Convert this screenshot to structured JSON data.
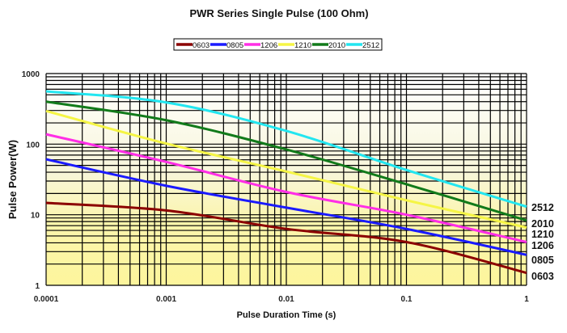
{
  "chart_data": {
    "type": "line",
    "title": "PWR Series Single Pulse (100 Ohm)",
    "xlabel": "Pulse Duration Time (s)",
    "ylabel": "Pulse Power(W)",
    "x_scale": "log",
    "y_scale": "log",
    "xlim": [
      0.0001,
      1
    ],
    "ylim": [
      1,
      1000
    ],
    "grid": true,
    "legend_position": "top",
    "x_ticks": [
      "0.0001",
      "0.001",
      "0.01",
      "0.1",
      "1"
    ],
    "y_ticks": [
      "1",
      "10",
      "100",
      "1000"
    ],
    "x": [
      0.0001,
      0.001,
      0.01,
      0.1,
      1
    ],
    "series": [
      {
        "name": "0603",
        "color": "#8b0000",
        "values": [
          14.7,
          11.5,
          6.3,
          4.1,
          1.5
        ]
      },
      {
        "name": "0805",
        "color": "#1a1aff",
        "values": [
          61,
          25.7,
          12.6,
          6.3,
          2.7
        ]
      },
      {
        "name": "1206",
        "color": "#ff2ee6",
        "values": [
          138,
          56,
          21,
          10,
          4.1
        ]
      },
      {
        "name": "1210",
        "color": "#f5f545",
        "values": [
          295,
          102,
          41,
          16,
          6.6
        ]
      },
      {
        "name": "2010",
        "color": "#117a1a",
        "values": [
          400,
          218,
          84,
          27,
          8.3
        ]
      },
      {
        "name": "2512",
        "color": "#22e6f0",
        "values": [
          560,
          390,
          154,
          43,
          13
        ]
      }
    ],
    "end_labels": [
      "2512",
      "2010",
      "1210",
      "1206",
      "0805",
      "0603"
    ]
  }
}
